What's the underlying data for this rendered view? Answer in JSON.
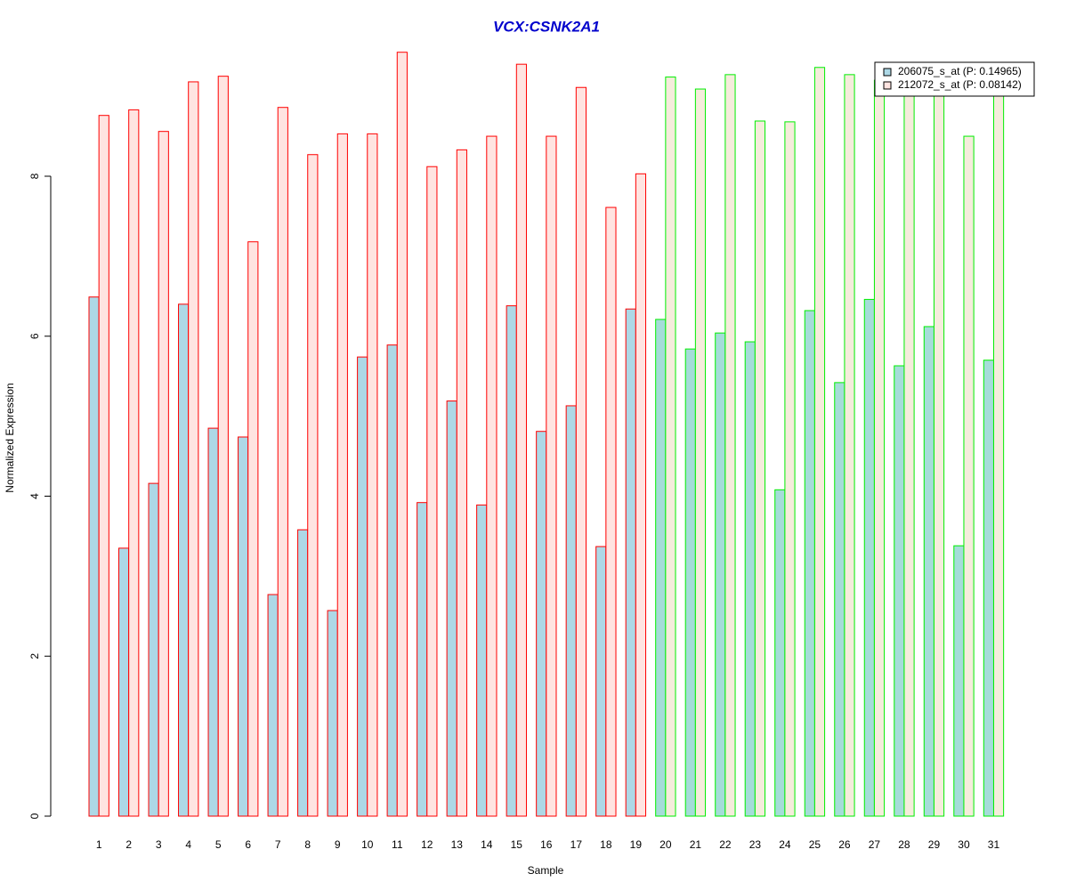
{
  "chart_data": {
    "type": "bar",
    "title": "VCX:CSNK2A1",
    "x_label": "Sample",
    "y_label": "Normalized Expression",
    "categories": [
      "1",
      "2",
      "3",
      "4",
      "5",
      "6",
      "7",
      "8",
      "9",
      "10",
      "11",
      "12",
      "13",
      "14",
      "15",
      "16",
      "17",
      "18",
      "19",
      "20",
      "21",
      "22",
      "23",
      "24",
      "25",
      "26",
      "27",
      "28",
      "29",
      "30",
      "31"
    ],
    "series": [
      {
        "name": "206075_s_at (P: 0.14965)",
        "color": "#add8e6",
        "colors": [
          "#add8e6",
          "#add8e6",
          "#add8e6",
          "#add8e6",
          "#add8e6",
          "#add8e6",
          "#add8e6",
          "#add8e6",
          "#add8e6",
          "#add8e6",
          "#add8e6",
          "#add8e6",
          "#add8e6",
          "#add8e6",
          "#add8e6",
          "#add8e6",
          "#add8e6",
          "#add8e6",
          "#add8e6",
          "#a5dcd9",
          "#a5dcd9",
          "#a5dcd9",
          "#a5dcd9",
          "#a5dcd9",
          "#a5dcd9",
          "#a5dcd9",
          "#a5dcd9",
          "#a5dcd9",
          "#a5dcd9",
          "#a5dcd9",
          "#a5dcd9"
        ],
        "values": [
          6.49,
          3.35,
          4.16,
          6.4,
          4.85,
          4.74,
          2.77,
          3.58,
          2.57,
          5.74,
          5.89,
          3.92,
          5.19,
          3.89,
          6.38,
          4.81,
          5.13,
          3.37,
          6.34,
          6.21,
          5.84,
          6.04,
          5.93,
          4.08,
          6.32,
          5.42,
          6.46,
          5.63,
          6.12,
          3.38,
          5.7
        ]
      },
      {
        "name": "212072_s_at (P: 0.08142)",
        "color": "#ffe4e1",
        "colors": [
          "#ffe4e1",
          "#ffe4e1",
          "#ffe4e1",
          "#ffe4e1",
          "#ffe4e1",
          "#ffe4e1",
          "#ffe4e1",
          "#ffe4e1",
          "#ffe4e1",
          "#ffe4e1",
          "#ffe4e1",
          "#ffe4e1",
          "#ffe4e1",
          "#ffe4e1",
          "#ffe4e1",
          "#ffe4e1",
          "#ffe4e1",
          "#ffe4e1",
          "#ffe4e1",
          "#f5ecdc",
          "#f5ecdc",
          "#f5ecdc",
          "#f5ecdc",
          "#f5ecdc",
          "#f5ecdc",
          "#f5ecdc",
          "#f5ecdc",
          "#f5ecdc",
          "#f5ecdc",
          "#f5ecdc",
          "#f5ecdc"
        ],
        "values": [
          8.76,
          8.83,
          8.56,
          9.18,
          9.25,
          7.18,
          8.86,
          8.27,
          8.53,
          8.53,
          9.55,
          8.12,
          8.33,
          8.5,
          9.4,
          8.5,
          9.11,
          7.61,
          8.03,
          9.24,
          9.09,
          9.27,
          8.69,
          8.68,
          9.36,
          9.27,
          9.2,
          9.1,
          9.1,
          8.5,
          9.1
        ]
      }
    ],
    "border_colors": [
      "#ff0000",
      "#ff0000",
      "#ff0000",
      "#ff0000",
      "#ff0000",
      "#ff0000",
      "#ff0000",
      "#ff0000",
      "#ff0000",
      "#ff0000",
      "#ff0000",
      "#ff0000",
      "#ff0000",
      "#ff0000",
      "#ff0000",
      "#ff0000",
      "#ff0000",
      "#ff0000",
      "#ff0000",
      "#00ee00",
      "#00ee00",
      "#00ee00",
      "#00ee00",
      "#00ee00",
      "#00ee00",
      "#00ee00",
      "#00ee00",
      "#00ee00",
      "#00ee00",
      "#00ee00",
      "#00ee00"
    ],
    "ylim": [
      0,
      9.6
    ],
    "yticks": [
      0,
      2,
      4,
      6,
      8
    ],
    "legend": "top-right"
  }
}
